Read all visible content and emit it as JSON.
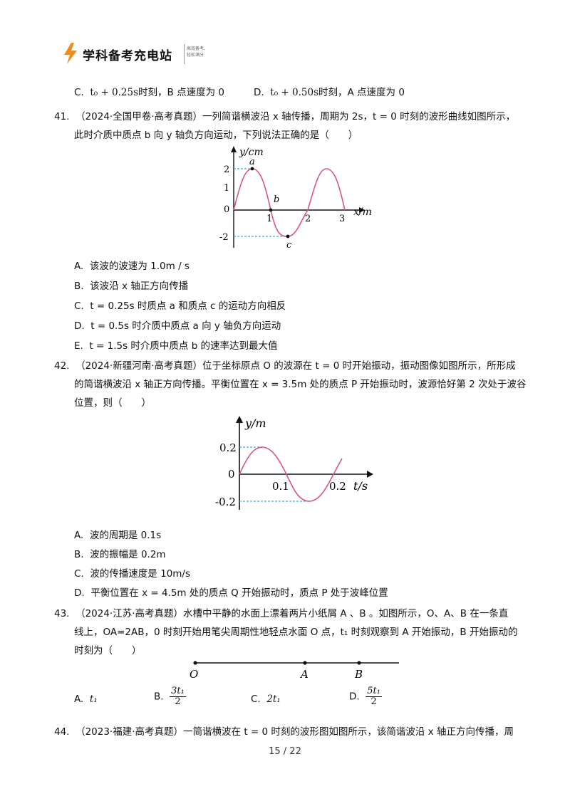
{
  "header": {
    "logo_text": "学科备考充电站",
    "tagline_1": "高效备考,",
    "tagline_2": "轻松满分"
  },
  "prev_options": {
    "c_label": "C.",
    "c_time": "t₀ + 0.25s",
    "c_text": "时刻，B 点速度为 0",
    "d_label": "D.",
    "d_time": "t₀ + 0.50s",
    "d_text": "时刻，A 点速度为 0"
  },
  "q41": {
    "number": "41.",
    "source": "（2024·全国甲卷·高考真题）",
    "stem_1": "一列简谐横波沿 x 轴传播，周期为 2s，t = 0 时刻的波形曲线如图所示，",
    "stem_2": "此时介质中质点 b 向 y 轴负方向运动，下列说法正确的是（　　）",
    "graph": {
      "y_axis_label": "y/cm",
      "x_axis_label": "x/m",
      "y_ticks": [
        "2",
        "1",
        "0",
        "-2"
      ],
      "x_ticks": [
        "1",
        "2",
        "3"
      ],
      "point_a": "a",
      "point_b": "b",
      "point_c": "c"
    },
    "options": [
      {
        "label": "A.",
        "text": "该波的波速为 1.0m / s"
      },
      {
        "label": "B.",
        "text": "该波沿 x 轴正方向传播"
      },
      {
        "label": "C.",
        "text": "t = 0.25s 时质点 a 和质点 c 的运动方向相反"
      },
      {
        "label": "D.",
        "text": "t = 0.5s 时介质中质点 a 向 y 轴负方向运动"
      },
      {
        "label": "E.",
        "text": "t = 1.5s 时介质中质点 b 的速率达到最大值"
      }
    ]
  },
  "q42": {
    "number": "42.",
    "source": "（2024·新疆河南·高考真题）",
    "stem_1": "位于坐标原点 O 的波源在 t = 0 时开始振动，振动图像如图所示，所形成",
    "stem_2": "的简谐横波沿 x 轴正方向传播。平衡位置在 x = 3.5m 处的质点 P 开始振动时，波源恰好第 2 次处于波谷",
    "stem_3": "位置，则（　　）",
    "graph": {
      "y_axis_label": "y/m",
      "x_axis_label": "t/s",
      "y_tick_top": "0.2",
      "y_tick_zero": "0",
      "y_tick_bottom": "-0.2",
      "x_tick_1": "0.1",
      "x_tick_2": "0.2"
    },
    "options": [
      {
        "label": "A.",
        "text": "波的周期是 0.1s"
      },
      {
        "label": "B.",
        "text": "波的振幅是 0.2m"
      },
      {
        "label": "C.",
        "text": "波的传播速度是 10m/s"
      },
      {
        "label": "D.",
        "text": "平衡位置在 x = 4.5m 处的质点 Q 开始振动时，质点 P 处于波峰位置"
      }
    ]
  },
  "q43": {
    "number": "43.",
    "source": "（2024·江苏·高考真题）",
    "stem_1": "水槽中平静的水面上漂着两片小纸屑 A 、B 。如图所示，O、A、B 在一条直",
    "stem_2": "线上，OA=2AB，0 时刻开始用笔尖周期性地轻点水面 O 点，t₁ 时刻观察到 A 开始振动，B 开始振动的",
    "stem_3": "时刻为（　　）",
    "diagram": {
      "label_o": "O",
      "label_a": "A",
      "label_b": "B"
    },
    "options": {
      "a_label": "A.",
      "a_text": "t₁",
      "b_label": "B.",
      "b_num": "3t₁",
      "b_den": "2",
      "c_label": "C.",
      "c_text": "2t₁",
      "d_label": "D.",
      "d_num": "5t₁",
      "d_den": "2"
    }
  },
  "q44": {
    "number": "44.",
    "source": "（2023·福建·高考真题）",
    "stem_1": "一简谐横波在 t = 0 时刻的波形图如图所示，该简谐波沿 x 轴正方向传播，周"
  },
  "footer": {
    "page": "15 / 22"
  },
  "colors": {
    "curve": "#d9567e",
    "dash": "#3aa6d8",
    "logo_bolt": "#f08c1c"
  }
}
